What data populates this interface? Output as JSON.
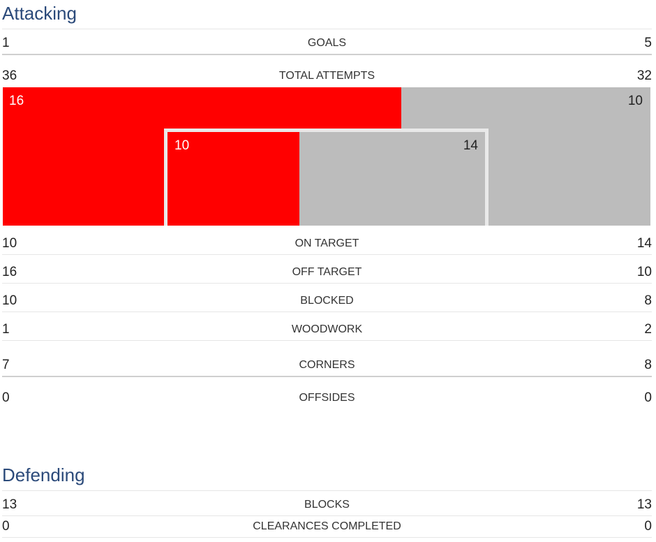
{
  "attacking": {
    "title": "Attacking",
    "goals": {
      "label": "GOALS",
      "home": "1",
      "away": "5"
    },
    "total_attempts": {
      "label": "TOTAL ATTEMPTS",
      "home": "36",
      "away": "32"
    },
    "shot_map": {
      "off_target_home": "16",
      "off_target_away": "10",
      "on_target_home": "10",
      "on_target_away": "14",
      "home_color": "#ff0000",
      "away_color": "#bcbcbc",
      "goal_frame_color": "#e9e9e9"
    },
    "on_target": {
      "label": "ON TARGET",
      "home": "10",
      "away": "14"
    },
    "off_target": {
      "label": "OFF TARGET",
      "home": "16",
      "away": "10"
    },
    "blocked": {
      "label": "BLOCKED",
      "home": "10",
      "away": "8"
    },
    "woodwork": {
      "label": "WOODWORK",
      "home": "1",
      "away": "2"
    },
    "corners": {
      "label": "CORNERS",
      "home": "7",
      "away": "8"
    },
    "offsides": {
      "label": "OFFSIDES",
      "home": "0",
      "away": "0"
    }
  },
  "defending": {
    "title": "Defending",
    "blocks": {
      "label": "BLOCKS",
      "home": "13",
      "away": "13"
    },
    "clearances_completed": {
      "label": "CLEARANCES COMPLETED",
      "home": "0",
      "away": "0"
    }
  },
  "colors": {
    "title": "#2b4a7a",
    "home": "#ff0000",
    "away": "#bcbcbc"
  }
}
